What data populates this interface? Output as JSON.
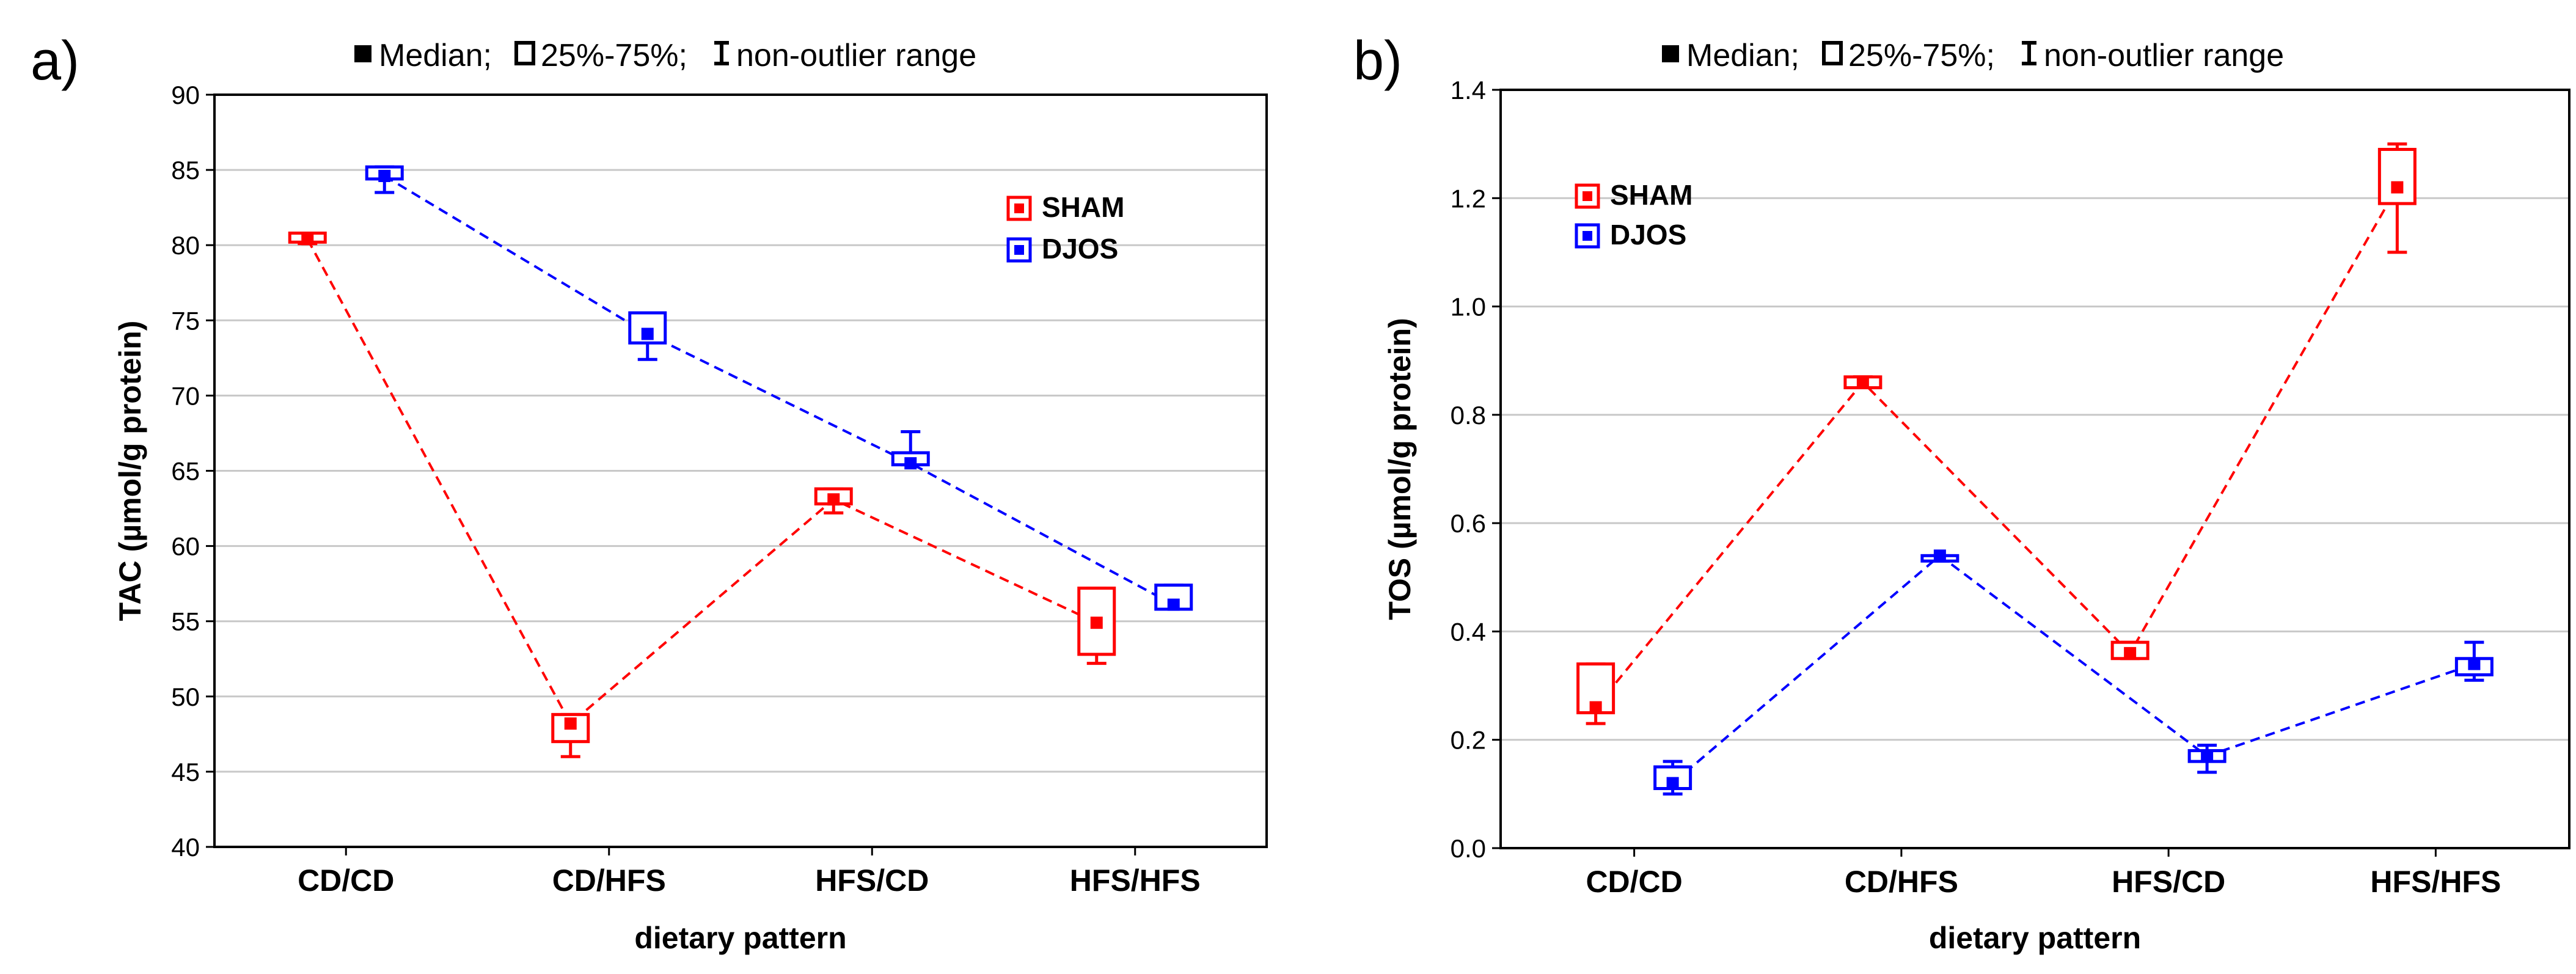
{
  "chart_data": [
    {
      "type": "box",
      "panel_label": "a)",
      "key": {
        "median": "Median;",
        "box": "25%-75%;",
        "whisker": "non-outlier range"
      },
      "ylabel": "TAC (µmol/g protein)",
      "xlabel": "dietary pattern",
      "ylim": [
        40,
        90
      ],
      "yticks": [
        40,
        45,
        50,
        55,
        60,
        65,
        70,
        75,
        80,
        85,
        90
      ],
      "categories": [
        "CD/CD",
        "CD/HFS",
        "HFS/CD",
        "HFS/HFS"
      ],
      "grid": true,
      "legend_position": "top-right",
      "series": [
        {
          "name": "SHAM",
          "color": "#ff0000",
          "median": [
            80.4,
            48.2,
            63.1,
            54.9
          ],
          "q1": [
            80.2,
            47.0,
            62.8,
            52.8
          ],
          "q3": [
            80.8,
            48.8,
            63.8,
            57.2
          ],
          "min": [
            80.1,
            46.0,
            62.2,
            52.2
          ],
          "max": [
            80.8,
            48.8,
            63.8,
            57.2
          ]
        },
        {
          "name": "DJOS",
          "color": "#0000ff",
          "median": [
            84.6,
            74.1,
            65.5,
            56.1
          ],
          "q1": [
            84.4,
            73.5,
            65.4,
            55.8
          ],
          "q3": [
            85.2,
            75.5,
            66.2,
            57.4
          ],
          "min": [
            83.5,
            72.4,
            65.4,
            55.8
          ],
          "max": [
            85.2,
            75.5,
            67.6,
            57.4
          ]
        }
      ]
    },
    {
      "type": "box",
      "panel_label": "b)",
      "key": {
        "median": "Median;",
        "box": "25%-75%;",
        "whisker": "non-outlier range"
      },
      "ylabel": "TOS (µmol/g protein)",
      "xlabel": "dietary pattern",
      "ylim": [
        0.0,
        1.4
      ],
      "yticks": [
        0.0,
        0.2,
        0.4,
        0.6,
        0.8,
        1.0,
        1.2,
        1.4
      ],
      "ytick_labels": [
        "0.0",
        "0.2",
        "0.4",
        "0.6",
        "0.8",
        "1.0",
        "1.2",
        "1.4"
      ],
      "categories": [
        "CD/CD",
        "CD/HFS",
        "HFS/CD",
        "HFS/HFS"
      ],
      "grid": true,
      "legend_position": "top-left",
      "series": [
        {
          "name": "SHAM",
          "color": "#ff0000",
          "median": [
            0.26,
            0.86,
            0.36,
            1.22
          ],
          "q1": [
            0.25,
            0.85,
            0.35,
            1.19
          ],
          "q3": [
            0.34,
            0.87,
            0.38,
            1.29
          ],
          "min": [
            0.23,
            0.85,
            0.35,
            1.1
          ],
          "max": [
            0.34,
            0.87,
            0.38,
            1.3
          ]
        },
        {
          "name": "DJOS",
          "color": "#0000ff",
          "median": [
            0.12,
            0.54,
            0.17,
            0.34
          ],
          "q1": [
            0.11,
            0.53,
            0.16,
            0.32
          ],
          "q3": [
            0.15,
            0.54,
            0.18,
            0.35
          ],
          "min": [
            0.1,
            0.53,
            0.14,
            0.31
          ],
          "max": [
            0.16,
            0.54,
            0.19,
            0.38
          ]
        }
      ]
    }
  ]
}
